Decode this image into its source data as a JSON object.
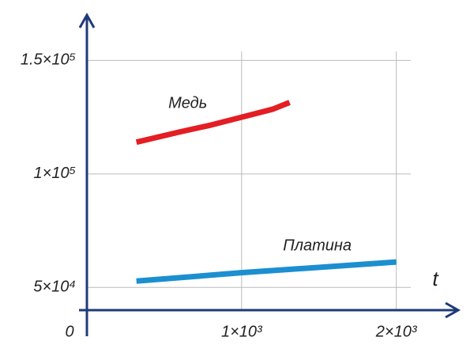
{
  "chart_data": {
    "type": "line",
    "x_label": "t",
    "xlim": [
      0,
      2400
    ],
    "ylim": [
      40000,
      170000
    ],
    "xticks": [
      0,
      {
        "value": 1000,
        "label": "1×10³"
      },
      {
        "value": 2000,
        "label": "2×10³"
      }
    ],
    "yticks": [
      {
        "value": 50000,
        "label": "5×10⁴"
      },
      {
        "value": 100000,
        "label": "1×10⁵"
      },
      {
        "value": 150000,
        "label": "1.5×10⁵"
      }
    ],
    "grid": true,
    "series": [
      {
        "name": "Медь",
        "color": "#e31e24",
        "x": [
          320,
          600,
          800,
          1000,
          1200,
          1310
        ],
        "values": [
          114000,
          118500,
          121500,
          125000,
          128500,
          131500
        ]
      },
      {
        "name": "Платина",
        "color": "#1b8fd0",
        "x": [
          320,
          1000,
          2000
        ],
        "values": [
          52800,
          56500,
          61200
        ]
      }
    ]
  }
}
